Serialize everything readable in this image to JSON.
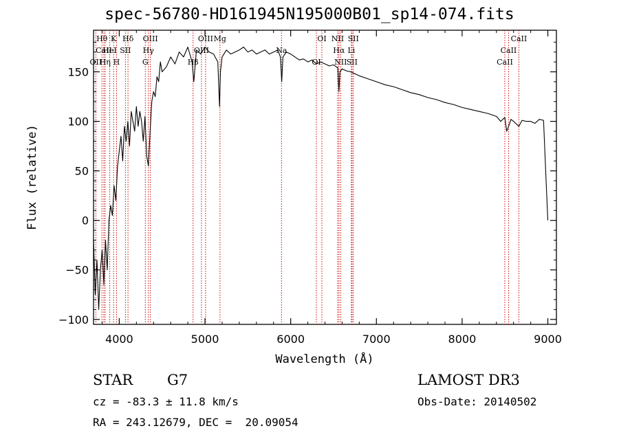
{
  "page_title": "spec-56780-HD161945N195000B01_sp14-074.fits",
  "info": {
    "class_label": "STAR",
    "subclass": "G7",
    "survey": "LAMOST DR3",
    "cz": "cz = -83.3 ± 11.8 km/s",
    "obs_date": "Obs-Date: 20140502",
    "coords": "RA = 243.12679, DEC =  20.09054"
  },
  "colors": {
    "axes": "#000000",
    "spectrum": "#000000",
    "lines": "#cc0000"
  },
  "chart_data": {
    "type": "line",
    "title": "spec-56780-HD161945N195000B01_sp14-074.fits",
    "xlabel": "Wavelength (Å)",
    "ylabel": "Flux (relative)",
    "xlim": [
      3700,
      9100
    ],
    "ylim": [
      -105,
      192
    ],
    "x_ticks": [
      4000,
      5000,
      6000,
      7000,
      8000,
      9000
    ],
    "y_ticks": [
      -100,
      -50,
      0,
      50,
      100,
      150
    ],
    "grid": false,
    "series": [
      {
        "x": [
          3700,
          3720,
          3740,
          3760,
          3780,
          3800,
          3820,
          3840,
          3860,
          3880,
          3900,
          3920,
          3940,
          3960,
          3980,
          4000,
          4020,
          4040,
          4060,
          4080,
          4100,
          4120,
          4140,
          4160,
          4180,
          4200,
          4220,
          4240,
          4260,
          4280,
          4300,
          4320,
          4340,
          4360,
          4380,
          4400,
          4420,
          4440,
          4460,
          4480,
          4500,
          4550,
          4600,
          4650,
          4700,
          4750,
          4800,
          4850,
          4870,
          4900,
          4950,
          5000,
          5050,
          5100,
          5150,
          5170,
          5180,
          5200,
          5250,
          5300,
          5350,
          5400,
          5450,
          5500,
          5550,
          5600,
          5650,
          5700,
          5750,
          5800,
          5850,
          5880,
          5895,
          5910,
          5950,
          6000,
          6050,
          6100,
          6150,
          6200,
          6250,
          6300,
          6350,
          6400,
          6450,
          6500,
          6550,
          6563,
          6575,
          6600,
          6650,
          6700,
          6750,
          6800,
          6900,
          7000,
          7100,
          7200,
          7300,
          7400,
          7500,
          7600,
          7700,
          7800,
          7900,
          8000,
          8100,
          8200,
          8300,
          8400,
          8450,
          8498,
          8520,
          8542,
          8570,
          8600,
          8662,
          8700,
          8750,
          8800,
          8850,
          8900,
          8950,
          8980,
          9000
        ],
        "y": [
          -20,
          -75,
          -40,
          -90,
          -50,
          -30,
          -65,
          -20,
          -50,
          0,
          15,
          5,
          35,
          20,
          55,
          70,
          85,
          60,
          95,
          80,
          100,
          75,
          110,
          100,
          90,
          115,
          95,
          110,
          100,
          80,
          105,
          65,
          55,
          90,
          120,
          130,
          125,
          145,
          140,
          160,
          150,
          155,
          165,
          158,
          170,
          165,
          175,
          160,
          140,
          172,
          168,
          175,
          170,
          168,
          160,
          115,
          150,
          165,
          172,
          168,
          170,
          172,
          175,
          170,
          172,
          168,
          170,
          172,
          168,
          170,
          172,
          165,
          140,
          165,
          170,
          168,
          165,
          162,
          163,
          160,
          162,
          158,
          160,
          158,
          156,
          157,
          154,
          130,
          150,
          153,
          151,
          150,
          148,
          146,
          143,
          140,
          137,
          135,
          132,
          129,
          127,
          124,
          122,
          119,
          117,
          114,
          112,
          110,
          108,
          105,
          100,
          104,
          90,
          95,
          102,
          100,
          95,
          101,
          100,
          100,
          98,
          102,
          101,
          40,
          0
        ]
      }
    ],
    "line_markers": [
      {
        "label": "Hθ",
        "x": 3798
      },
      {
        "label": "CaII",
        "x": 3820
      },
      {
        "label": "OII",
        "x": 3727
      },
      {
        "label": "K",
        "x": 3934
      },
      {
        "label": "HeI",
        "x": 3889
      },
      {
        "label": "Hη",
        "x": 3835
      },
      {
        "label": "Hδ",
        "x": 4102
      },
      {
        "label": "SII",
        "x": 4072
      },
      {
        "label": "H",
        "x": 3968
      },
      {
        "label": "OIII",
        "x": 4363
      },
      {
        "label": "Hγ",
        "x": 4340
      },
      {
        "label": "G",
        "x": 4304
      },
      {
        "label": "OIII",
        "x": 5007
      },
      {
        "label": "OIII",
        "x": 4959
      },
      {
        "label": "Hβ",
        "x": 4861
      },
      {
        "label": "Mg",
        "x": 5175
      },
      {
        "label": "Na",
        "x": 5893
      },
      {
        "label": "OI",
        "x": 6300
      },
      {
        "label": "OI",
        "x": 6364
      },
      {
        "label": "Hα",
        "x": 6563
      },
      {
        "label": "SII",
        "x": 6716
      },
      {
        "label": "NII",
        "x": 6548
      },
      {
        "label": "Li",
        "x": 6708
      },
      {
        "label": "NII",
        "x": 6583
      },
      {
        "label": "SII",
        "x": 6731
      },
      {
        "label": "CaII",
        "x": 8542
      },
      {
        "label": "CaII",
        "x": 8498
      },
      {
        "label": "CaII",
        "x": 8662
      }
    ]
  }
}
